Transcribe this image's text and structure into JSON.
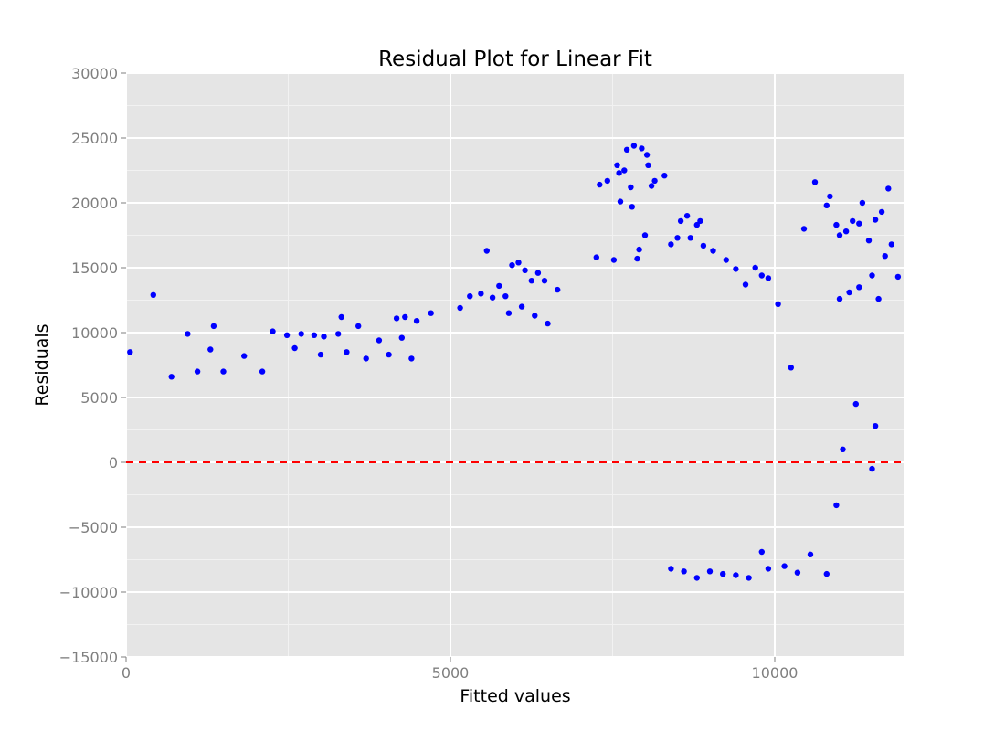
{
  "chart_data": {
    "type": "scatter",
    "title": "Residual Plot for Linear Fit",
    "xlabel": "Fitted values",
    "ylabel": "Residuals",
    "xlim": [
      0,
      12000
    ],
    "ylim": [
      -15000,
      30000
    ],
    "x_ticks": [
      0,
      5000,
      10000
    ],
    "x_tick_labels": [
      "0",
      "5000",
      "10000"
    ],
    "y_ticks": [
      -15000,
      -10000,
      -5000,
      0,
      5000,
      10000,
      15000,
      20000,
      25000,
      30000
    ],
    "y_tick_labels": [
      "−15000",
      "−10000",
      "−5000",
      "0",
      "5000",
      "10000",
      "15000",
      "20000",
      "25000",
      "30000"
    ],
    "grid": true,
    "panel_background": "#e5e5e5",
    "grid_color": "#ffffff",
    "point_color": "#0000ff",
    "reference_line": {
      "y": 0,
      "style": "dashed",
      "color": "#ff0000"
    },
    "series": [
      {
        "values": [
          [
            60,
            8500
          ],
          [
            420,
            12900
          ],
          [
            950,
            9900
          ],
          [
            1350,
            10500
          ],
          [
            1300,
            8700
          ],
          [
            1820,
            8200
          ],
          [
            2260,
            10100
          ],
          [
            2480,
            9800
          ],
          [
            2700,
            9900
          ],
          [
            2900,
            9800
          ],
          [
            3050,
            9700
          ],
          [
            3270,
            9900
          ],
          [
            3320,
            11200
          ],
          [
            3580,
            10500
          ],
          [
            4170,
            11100
          ],
          [
            4300,
            11200
          ],
          [
            4480,
            10900
          ],
          [
            4700,
            11500
          ],
          [
            3400,
            8500
          ],
          [
            3700,
            8000
          ],
          [
            3900,
            9400
          ],
          [
            4050,
            8300
          ],
          [
            4250,
            9600
          ],
          [
            4400,
            8000
          ],
          [
            2600,
            8800
          ],
          [
            3000,
            8300
          ],
          [
            2100,
            7000
          ],
          [
            1500,
            7000
          ],
          [
            1100,
            7000
          ],
          [
            700,
            6600
          ],
          [
            5150,
            11900
          ],
          [
            5300,
            12800
          ],
          [
            5470,
            13000
          ],
          [
            5560,
            16300
          ],
          [
            5650,
            12700
          ],
          [
            5750,
            13600
          ],
          [
            5850,
            12800
          ],
          [
            5950,
            15200
          ],
          [
            6050,
            15400
          ],
          [
            6150,
            14800
          ],
          [
            6250,
            14000
          ],
          [
            6350,
            14600
          ],
          [
            6450,
            14000
          ],
          [
            5900,
            11500
          ],
          [
            6100,
            12000
          ],
          [
            6300,
            11300
          ],
          [
            6500,
            10700
          ],
          [
            6650,
            13300
          ],
          [
            7250,
            15800
          ],
          [
            7300,
            21400
          ],
          [
            7420,
            21700
          ],
          [
            7520,
            15600
          ],
          [
            7570,
            22900
          ],
          [
            7600,
            22300
          ],
          [
            7620,
            20100
          ],
          [
            7680,
            22500
          ],
          [
            7720,
            24100
          ],
          [
            7780,
            21200
          ],
          [
            7800,
            19700
          ],
          [
            7830,
            24400
          ],
          [
            7880,
            15700
          ],
          [
            7910,
            16400
          ],
          [
            7950,
            24200
          ],
          [
            8000,
            17500
          ],
          [
            8030,
            23700
          ],
          [
            8050,
            22900
          ],
          [
            8100,
            21300
          ],
          [
            8150,
            21700
          ],
          [
            8300,
            22100
          ],
          [
            8400,
            16800
          ],
          [
            8500,
            17300
          ],
          [
            8550,
            18600
          ],
          [
            8650,
            19000
          ],
          [
            8700,
            17300
          ],
          [
            8800,
            18300
          ],
          [
            8850,
            18600
          ],
          [
            8900,
            16700
          ],
          [
            9050,
            16300
          ],
          [
            9250,
            15600
          ],
          [
            9400,
            14900
          ],
          [
            9550,
            13700
          ],
          [
            9700,
            15000
          ],
          [
            9800,
            14400
          ],
          [
            9900,
            14200
          ],
          [
            10050,
            12200
          ],
          [
            10250,
            7300
          ],
          [
            10450,
            18000
          ],
          [
            10620,
            21600
          ],
          [
            10800,
            19800
          ],
          [
            10850,
            20500
          ],
          [
            10950,
            18300
          ],
          [
            11000,
            17500
          ],
          [
            11100,
            17800
          ],
          [
            11200,
            18600
          ],
          [
            11300,
            18400
          ],
          [
            11350,
            20000
          ],
          [
            11450,
            17100
          ],
          [
            11550,
            18700
          ],
          [
            11600,
            12600
          ],
          [
            11650,
            19300
          ],
          [
            11750,
            21100
          ],
          [
            11800,
            16800
          ],
          [
            11900,
            14300
          ],
          [
            11700,
            15900
          ],
          [
            11500,
            14400
          ],
          [
            11000,
            12600
          ],
          [
            11150,
            13100
          ],
          [
            11300,
            13500
          ],
          [
            11550,
            2800
          ],
          [
            11250,
            4500
          ],
          [
            11500,
            -500
          ],
          [
            11050,
            1000
          ],
          [
            10950,
            -3300
          ],
          [
            10800,
            -8600
          ],
          [
            10550,
            -7100
          ],
          [
            10350,
            -8500
          ],
          [
            10150,
            -8000
          ],
          [
            9900,
            -8200
          ],
          [
            9800,
            -6900
          ],
          [
            9600,
            -8900
          ],
          [
            9400,
            -8700
          ],
          [
            9200,
            -8600
          ],
          [
            9000,
            -8400
          ],
          [
            8800,
            -8900
          ],
          [
            8600,
            -8400
          ],
          [
            8400,
            -8200
          ]
        ]
      }
    ]
  }
}
